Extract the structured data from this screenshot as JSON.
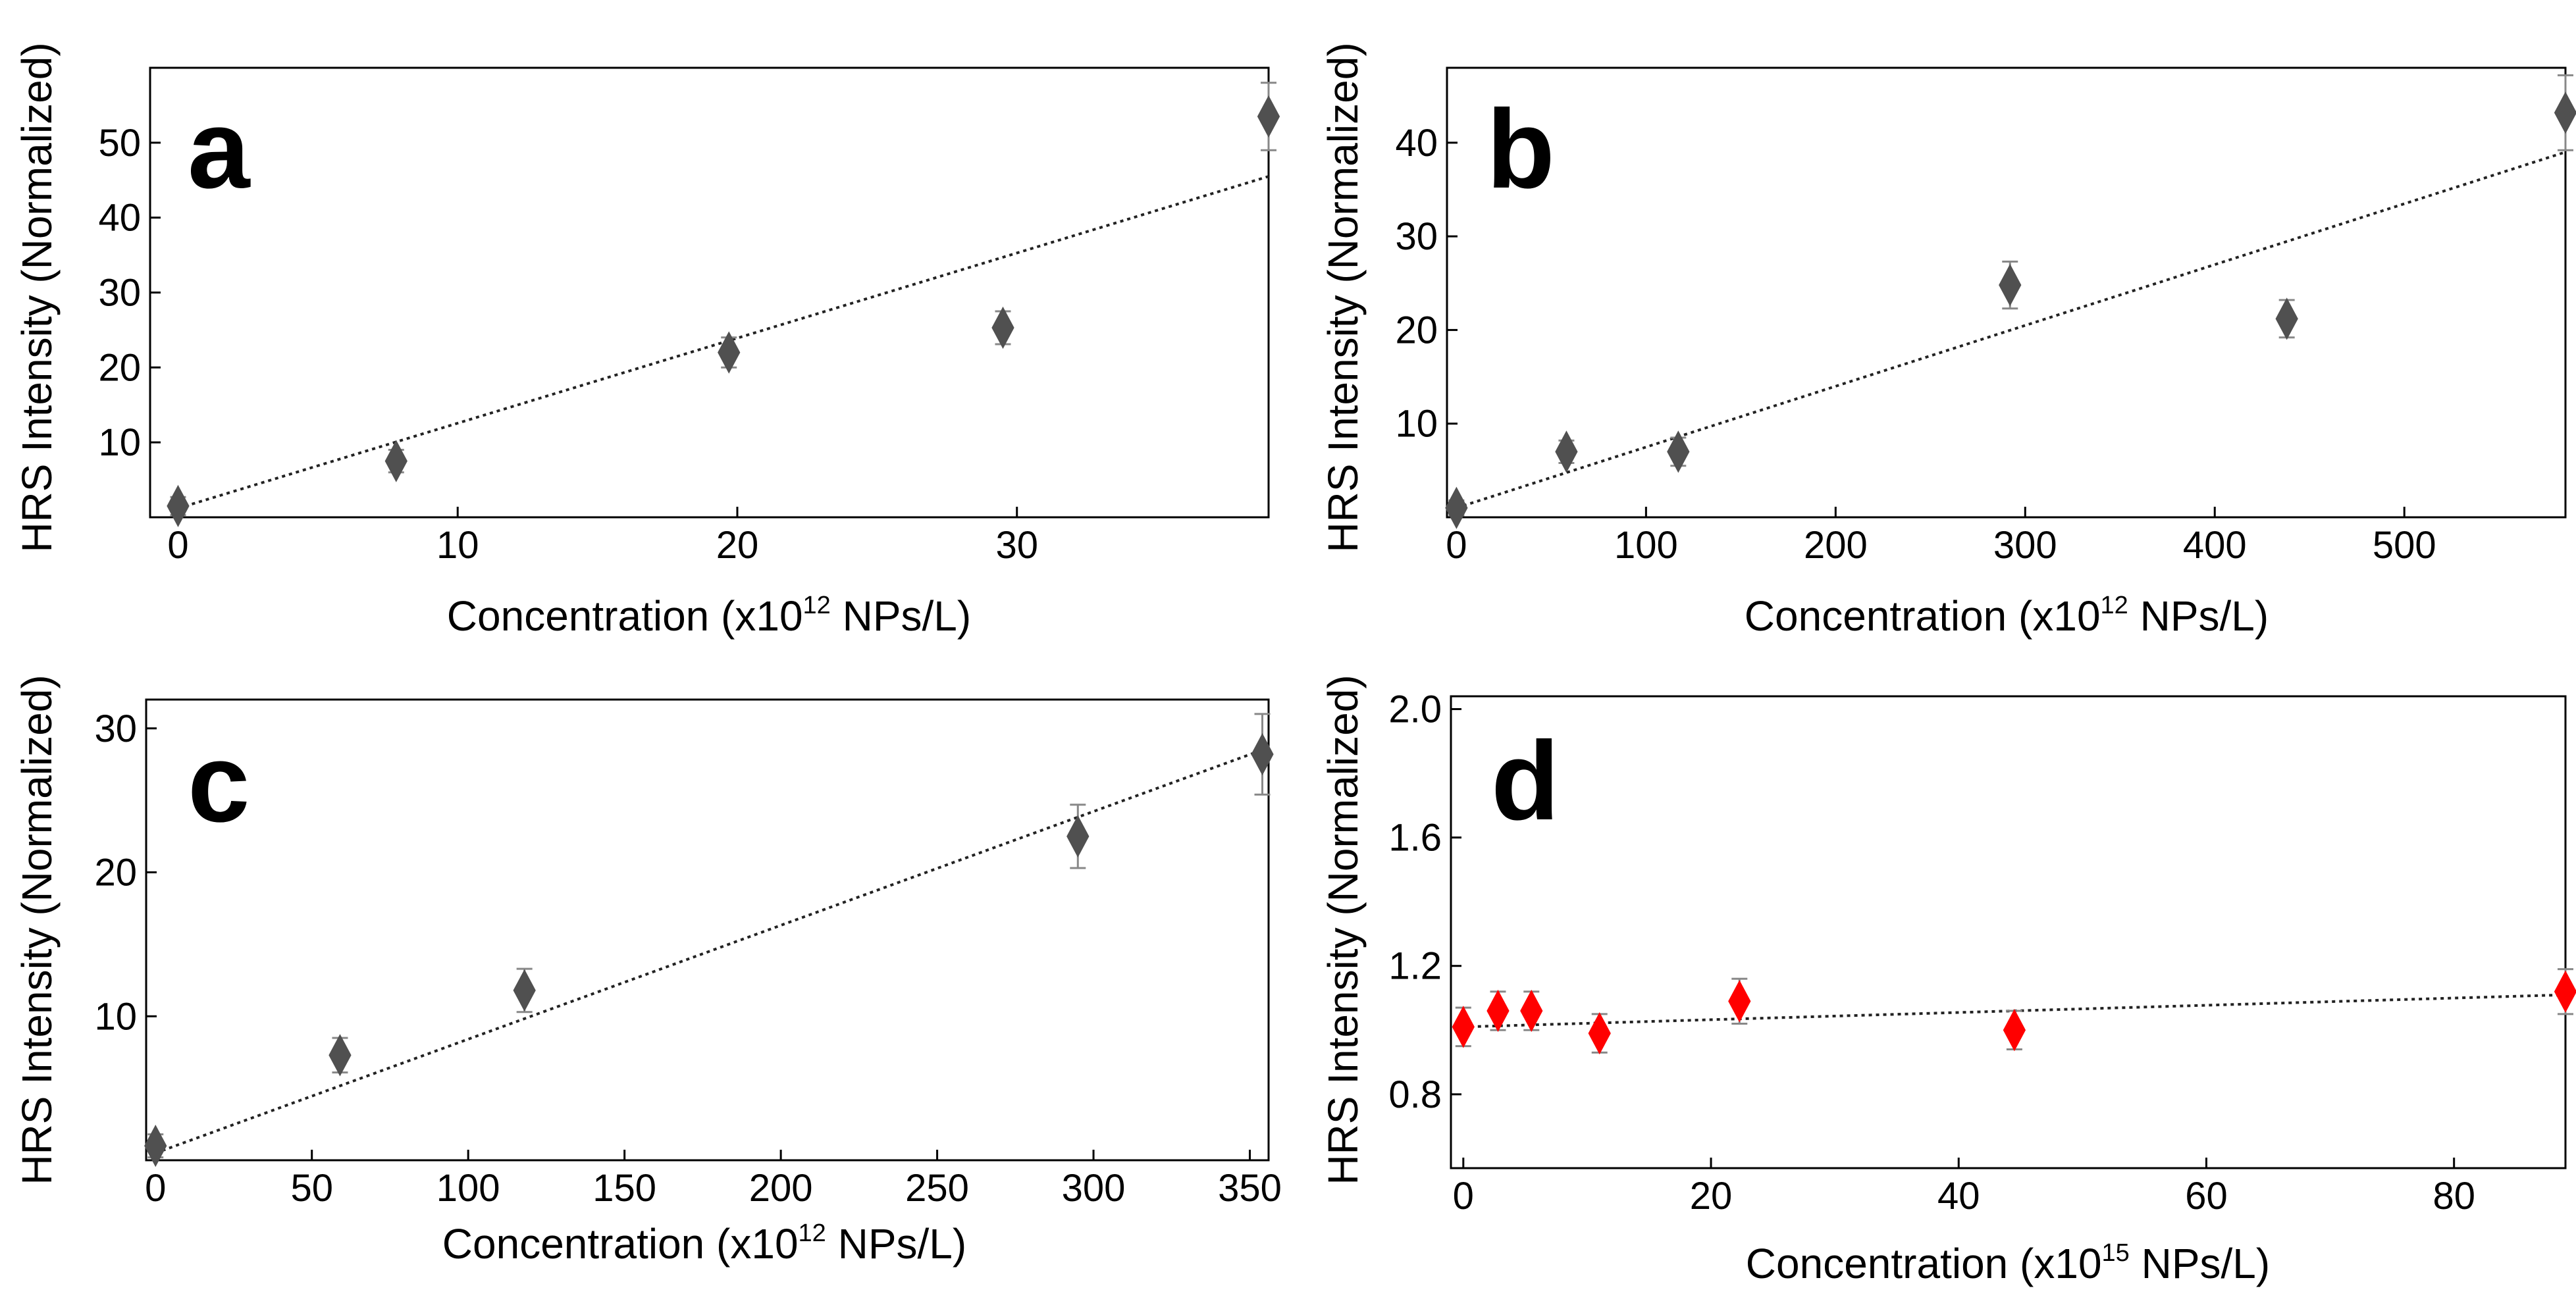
{
  "chart_data": [
    {
      "type": "scatter",
      "panel": "a",
      "xlabel_pre": "Concentration (x10",
      "xlabel_exp": "12",
      "xlabel_post": " NPs/L)",
      "ylabel": "HRS Intensity (Normalized)",
      "xlim": [
        -1,
        39
      ],
      "ylim": [
        0,
        60
      ],
      "xticks": [
        0,
        10,
        20,
        30
      ],
      "yticks": [
        10,
        20,
        30,
        40,
        50
      ],
      "marker_color": "#505050",
      "series": [
        {
          "name": "data",
          "x": [
            0,
            7.8,
            19.7,
            29.5,
            39
          ],
          "y": [
            1.5,
            7.5,
            22,
            25.3,
            53.5
          ],
          "err": [
            1.2,
            1.5,
            2.0,
            2.2,
            4.5
          ]
        }
      ],
      "fit": {
        "x": [
          0,
          39
        ],
        "y": [
          1.2,
          45.5
        ]
      }
    },
    {
      "type": "scatter",
      "panel": "b",
      "xlabel_pre": "Concentration (x10",
      "xlabel_exp": "12",
      "xlabel_post": " NPs/L)",
      "ylabel": "HRS Intensity (Normalized)",
      "xlim": [
        -5,
        585
      ],
      "ylim": [
        0,
        48
      ],
      "xticks": [
        0,
        100,
        200,
        300,
        400,
        500
      ],
      "yticks": [
        10,
        20,
        30,
        40
      ],
      "marker_color": "#505050",
      "series": [
        {
          "name": "data",
          "x": [
            0,
            58,
            117,
            292,
            438,
            585
          ],
          "y": [
            1,
            7,
            7,
            24.8,
            21.2,
            43.2
          ],
          "err": [
            0.8,
            1.2,
            1.5,
            2.5,
            2.0,
            4.0
          ]
        }
      ],
      "fit": {
        "x": [
          0,
          585
        ],
        "y": [
          1,
          39
        ]
      }
    },
    {
      "type": "scatter",
      "panel": "c",
      "xlabel_pre": "Concentration (x10",
      "xlabel_exp": "12",
      "xlabel_post": " NPs/L)",
      "ylabel": "HRS Intensity (Normalized)",
      "xlim": [
        -3,
        356
      ],
      "ylim": [
        0,
        32
      ],
      "xticks": [
        0,
        50,
        100,
        150,
        200,
        250,
        300,
        350
      ],
      "yticks": [
        10,
        20,
        30
      ],
      "marker_color": "#505050",
      "series": [
        {
          "name": "data",
          "x": [
            0,
            59,
            118,
            295,
            354
          ],
          "y": [
            1,
            7.3,
            11.8,
            22.5,
            28.2
          ],
          "err": [
            0.8,
            1.2,
            1.5,
            2.2,
            2.8
          ]
        }
      ],
      "fit": {
        "x": [
          0,
          354
        ],
        "y": [
          0.5,
          28.5
        ]
      }
    },
    {
      "type": "scatter",
      "panel": "d",
      "xlabel_pre": "Concentration (x10",
      "xlabel_exp": "15",
      "xlabel_post": " NPs/L)",
      "ylabel": "HRS Intensity (Normalized)",
      "xlim": [
        -1,
        89
      ],
      "ylim": [
        0.57,
        2.04
      ],
      "xticks": [
        0,
        20,
        40,
        60,
        80
      ],
      "yticks": [
        0.8,
        1.2,
        1.6,
        2.0
      ],
      "ytick_labels": [
        "0.8",
        "1.2",
        "1.6",
        "2.0"
      ],
      "marker_color": "#ff0000",
      "series": [
        {
          "name": "data",
          "x": [
            0,
            2.8,
            5.5,
            11,
            22.3,
            44.5,
            89
          ],
          "y": [
            1.01,
            1.06,
            1.06,
            0.99,
            1.09,
            1.0,
            1.12
          ],
          "err": [
            0.06,
            0.06,
            0.06,
            0.06,
            0.07,
            0.06,
            0.07
          ]
        }
      ],
      "fit": {
        "x": [
          0,
          89
        ],
        "y": [
          1.01,
          1.11
        ]
      }
    }
  ]
}
